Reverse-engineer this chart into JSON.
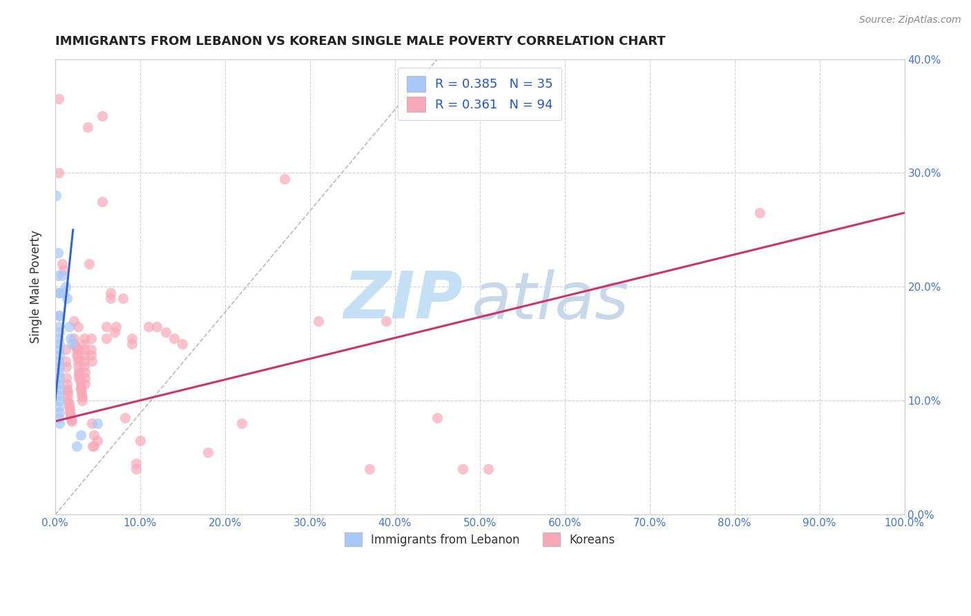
{
  "title": "IMMIGRANTS FROM LEBANON VS KOREAN SINGLE MALE POVERTY CORRELATION CHART",
  "source": "Source: ZipAtlas.com",
  "ylabel": "Single Male Poverty",
  "xlim": [
    0,
    1.0
  ],
  "ylim": [
    0,
    0.4
  ],
  "xticks": [
    0.0,
    0.1,
    0.2,
    0.3,
    0.4,
    0.5,
    0.6,
    0.7,
    0.8,
    0.9,
    1.0
  ],
  "yticks": [
    0.0,
    0.1,
    0.2,
    0.3,
    0.4
  ],
  "blue_R": 0.385,
  "blue_N": 35,
  "pink_R": 0.361,
  "pink_N": 94,
  "blue_color": "#a8c8f8",
  "pink_color": "#f8a8b8",
  "blue_line_color": "#3366cc",
  "pink_line_color": "#cc3366",
  "blue_scatter": [
    [
      0.001,
      0.28
    ],
    [
      0.003,
      0.23
    ],
    [
      0.003,
      0.21
    ],
    [
      0.004,
      0.195
    ],
    [
      0.004,
      0.175
    ],
    [
      0.004,
      0.165
    ],
    [
      0.004,
      0.155
    ],
    [
      0.004,
      0.145
    ],
    [
      0.004,
      0.135
    ],
    [
      0.004,
      0.125
    ],
    [
      0.004,
      0.115
    ],
    [
      0.004,
      0.105
    ],
    [
      0.004,
      0.095
    ],
    [
      0.004,
      0.085
    ],
    [
      0.005,
      0.195
    ],
    [
      0.005,
      0.175
    ],
    [
      0.005,
      0.16
    ],
    [
      0.005,
      0.15
    ],
    [
      0.005,
      0.14
    ],
    [
      0.005,
      0.13
    ],
    [
      0.005,
      0.12
    ],
    [
      0.005,
      0.11
    ],
    [
      0.005,
      0.1
    ],
    [
      0.005,
      0.09
    ],
    [
      0.005,
      0.08
    ],
    [
      0.008,
      0.21
    ],
    [
      0.01,
      0.195
    ],
    [
      0.012,
      0.2
    ],
    [
      0.014,
      0.19
    ],
    [
      0.016,
      0.165
    ],
    [
      0.018,
      0.155
    ],
    [
      0.02,
      0.15
    ],
    [
      0.025,
      0.06
    ],
    [
      0.03,
      0.07
    ],
    [
      0.05,
      0.08
    ]
  ],
  "pink_scatter": [
    [
      0.004,
      0.365
    ],
    [
      0.004,
      0.3
    ],
    [
      0.008,
      0.22
    ],
    [
      0.01,
      0.215
    ],
    [
      0.012,
      0.145
    ],
    [
      0.012,
      0.135
    ],
    [
      0.013,
      0.13
    ],
    [
      0.013,
      0.12
    ],
    [
      0.014,
      0.115
    ],
    [
      0.014,
      0.11
    ],
    [
      0.015,
      0.108
    ],
    [
      0.015,
      0.105
    ],
    [
      0.015,
      0.1
    ],
    [
      0.016,
      0.098
    ],
    [
      0.016,
      0.095
    ],
    [
      0.017,
      0.093
    ],
    [
      0.017,
      0.09
    ],
    [
      0.018,
      0.088
    ],
    [
      0.018,
      0.086
    ],
    [
      0.019,
      0.085
    ],
    [
      0.019,
      0.083
    ],
    [
      0.02,
      0.082
    ],
    [
      0.022,
      0.17
    ],
    [
      0.022,
      0.155
    ],
    [
      0.023,
      0.15
    ],
    [
      0.024,
      0.148
    ],
    [
      0.025,
      0.145
    ],
    [
      0.025,
      0.14
    ],
    [
      0.027,
      0.165
    ],
    [
      0.027,
      0.145
    ],
    [
      0.027,
      0.138
    ],
    [
      0.027,
      0.135
    ],
    [
      0.027,
      0.13
    ],
    [
      0.028,
      0.125
    ],
    [
      0.028,
      0.123
    ],
    [
      0.028,
      0.12
    ],
    [
      0.029,
      0.118
    ],
    [
      0.03,
      0.115
    ],
    [
      0.03,
      0.112
    ],
    [
      0.03,
      0.11
    ],
    [
      0.031,
      0.108
    ],
    [
      0.031,
      0.105
    ],
    [
      0.032,
      0.103
    ],
    [
      0.032,
      0.1
    ],
    [
      0.034,
      0.155
    ],
    [
      0.034,
      0.15
    ],
    [
      0.034,
      0.145
    ],
    [
      0.034,
      0.14
    ],
    [
      0.034,
      0.135
    ],
    [
      0.034,
      0.13
    ],
    [
      0.035,
      0.125
    ],
    [
      0.035,
      0.12
    ],
    [
      0.035,
      0.115
    ],
    [
      0.038,
      0.34
    ],
    [
      0.04,
      0.22
    ],
    [
      0.042,
      0.155
    ],
    [
      0.042,
      0.145
    ],
    [
      0.042,
      0.14
    ],
    [
      0.043,
      0.135
    ],
    [
      0.043,
      0.08
    ],
    [
      0.044,
      0.06
    ],
    [
      0.046,
      0.07
    ],
    [
      0.046,
      0.06
    ],
    [
      0.05,
      0.065
    ],
    [
      0.055,
      0.35
    ],
    [
      0.055,
      0.275
    ],
    [
      0.06,
      0.165
    ],
    [
      0.06,
      0.155
    ],
    [
      0.065,
      0.195
    ],
    [
      0.065,
      0.19
    ],
    [
      0.07,
      0.16
    ],
    [
      0.072,
      0.165
    ],
    [
      0.08,
      0.19
    ],
    [
      0.082,
      0.085
    ],
    [
      0.09,
      0.155
    ],
    [
      0.09,
      0.15
    ],
    [
      0.095,
      0.04
    ],
    [
      0.095,
      0.045
    ],
    [
      0.1,
      0.065
    ],
    [
      0.11,
      0.165
    ],
    [
      0.12,
      0.165
    ],
    [
      0.13,
      0.16
    ],
    [
      0.14,
      0.155
    ],
    [
      0.15,
      0.15
    ],
    [
      0.18,
      0.055
    ],
    [
      0.22,
      0.08
    ],
    [
      0.27,
      0.295
    ],
    [
      0.31,
      0.17
    ],
    [
      0.37,
      0.04
    ],
    [
      0.39,
      0.17
    ],
    [
      0.45,
      0.085
    ],
    [
      0.48,
      0.04
    ],
    [
      0.51,
      0.04
    ],
    [
      0.83,
      0.265
    ]
  ],
  "watermark_zip_color": "#c5dff5",
  "watermark_atlas_color": "#c8d8e8",
  "background_color": "#ffffff",
  "grid_color": "#cccccc",
  "legend_blue_label": "R = 0.385   N = 35",
  "legend_pink_label": "R = 0.361   N = 94",
  "legend_bottom_blue": "Immigrants from Lebanon",
  "legend_bottom_pink": "Koreans",
  "blue_line_x": [
    0.0,
    0.021
  ],
  "blue_line_y": [
    0.1,
    0.25
  ],
  "pink_line_x": [
    0.0,
    1.0
  ],
  "pink_line_y": [
    0.082,
    0.265
  ]
}
